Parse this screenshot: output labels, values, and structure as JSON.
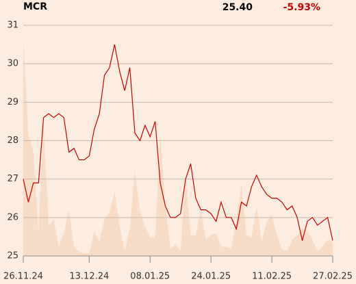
{
  "chart_data": {
    "type": "line",
    "title": "MCR",
    "price": "25.40",
    "change": "-5.93%",
    "categories": [
      "26.11.24",
      null,
      null,
      null,
      null,
      null,
      null,
      null,
      null,
      null,
      null,
      null,
      null,
      "13.12.24",
      null,
      null,
      null,
      null,
      null,
      null,
      null,
      null,
      null,
      null,
      null,
      "08.01.25",
      null,
      null,
      null,
      null,
      null,
      null,
      null,
      null,
      null,
      null,
      null,
      "24.01.25",
      null,
      null,
      null,
      null,
      null,
      null,
      null,
      null,
      null,
      null,
      null,
      "11.02.25",
      null,
      null,
      null,
      null,
      null,
      null,
      null,
      null,
      null,
      null,
      null,
      "27.02.25"
    ],
    "series": [
      {
        "name": "MCR",
        "color": "#cc0000",
        "values": [
          27.0,
          26.4,
          26.9,
          26.9,
          28.6,
          28.7,
          28.6,
          28.7,
          28.6,
          27.7,
          27.8,
          27.5,
          27.5,
          27.6,
          28.3,
          28.7,
          29.7,
          29.9,
          30.5,
          29.8,
          29.3,
          29.9,
          28.2,
          28.0,
          28.4,
          28.1,
          28.5,
          26.9,
          26.3,
          26.0,
          26.0,
          26.1,
          27.0,
          27.4,
          26.5,
          26.2,
          26.2,
          26.1,
          25.9,
          26.4,
          26.0,
          26.0,
          25.7,
          26.4,
          26.3,
          26.8,
          27.1,
          26.8,
          26.6,
          26.5,
          26.5,
          26.4,
          26.2,
          26.3,
          26.0,
          25.4,
          25.9,
          26.0,
          25.8,
          25.9,
          26.0,
          25.4
        ]
      },
      {
        "type": "area",
        "axis": "volume",
        "color": "#f9dcc6",
        "values": [
          94,
          53,
          45,
          10,
          58,
          13,
          16,
          4,
          10,
          20,
          4,
          2,
          1,
          1,
          11,
          6,
          16,
          19,
          28,
          13,
          2,
          12,
          37,
          20,
          13,
          8,
          8,
          53,
          22,
          3,
          5,
          2,
          34,
          9,
          9,
          20,
          7,
          9,
          10,
          4,
          4,
          3,
          16,
          31,
          9,
          8,
          22,
          6,
          15,
          18,
          9,
          3,
          2,
          7,
          9,
          12,
          11,
          7,
          2,
          4,
          7,
          6
        ]
      }
    ],
    "ylim": [
      25,
      31
    ],
    "yticks": [
      25,
      26,
      27,
      28,
      29,
      30,
      31
    ],
    "vlim": [
      0,
      100
    ],
    "grid": true
  }
}
